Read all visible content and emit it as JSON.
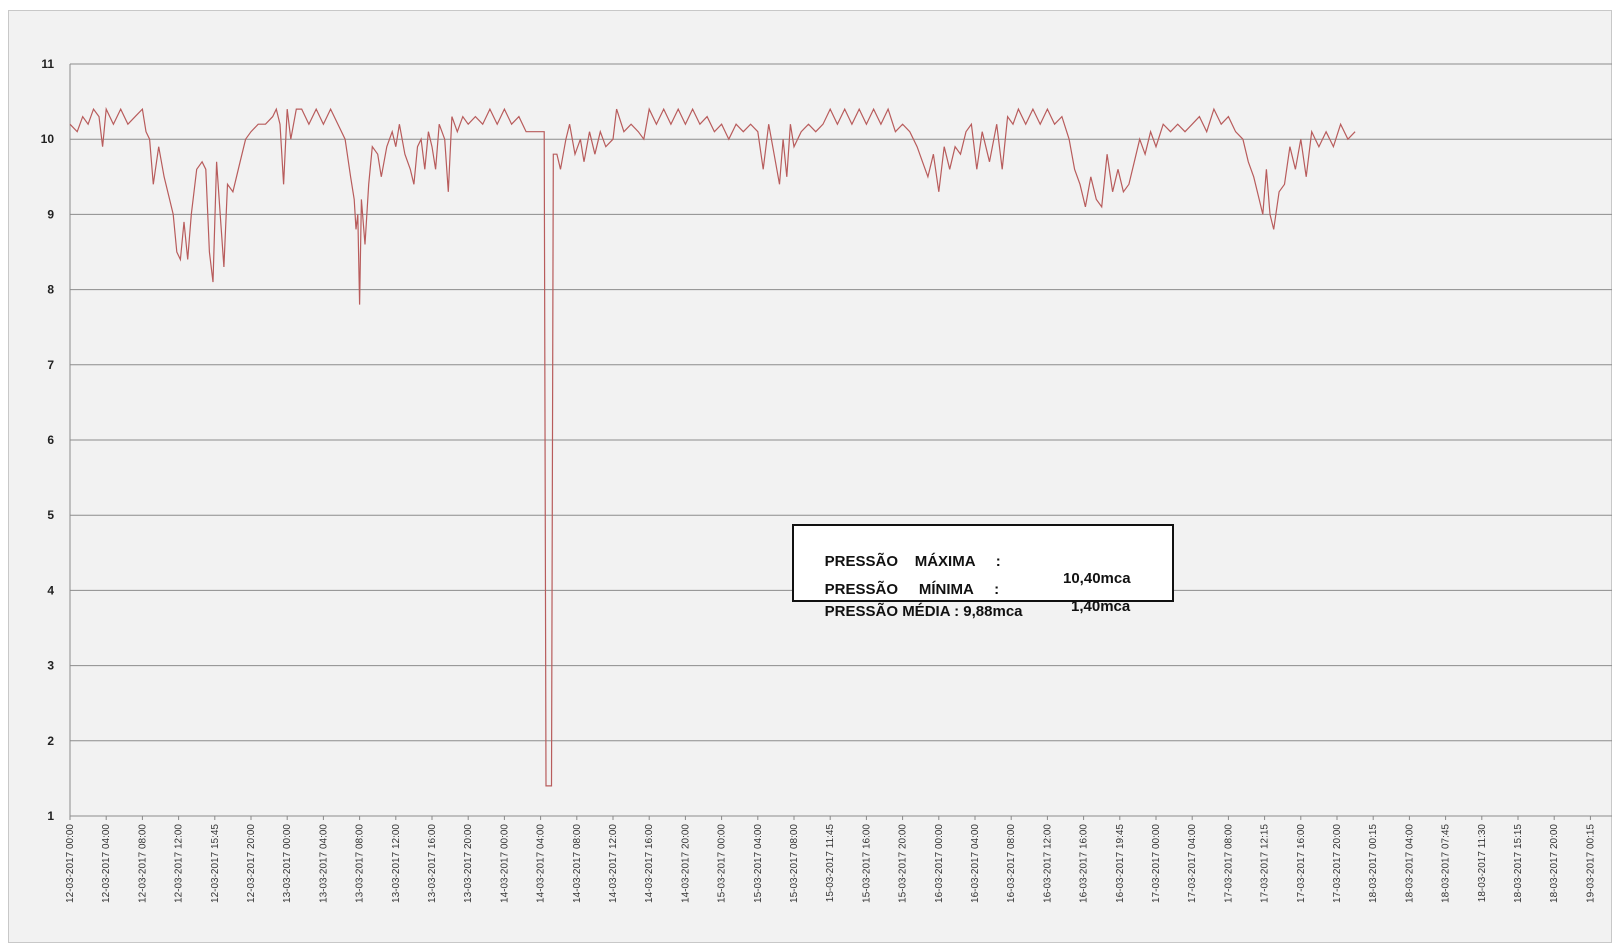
{
  "chart_data": {
    "type": "line",
    "title": "",
    "xlabel": "",
    "ylabel": "",
    "ylim": [
      1,
      11
    ],
    "yticks": [
      "1",
      "2",
      "3",
      "4",
      "5",
      "6",
      "7",
      "8",
      "9",
      "10",
      "11"
    ],
    "grid": true,
    "xtick_labels": [
      "12-03-2017 00:00",
      "12-03-2017 04:00",
      "12-03-2017 08:00",
      "12-03-2017 12:00",
      "12-03-2017 15:45",
      "12-03-2017 20:00",
      "13-03-2017 00:00",
      "13-03-2017 04:00",
      "13-03-2017 08:00",
      "13-03-2017 12:00",
      "13-03-2017 16:00",
      "13-03-2017 20:00",
      "14-03-2017 00:00",
      "14-03-2017 04:00",
      "14-03-2017 08:00",
      "14-03-2017 12:00",
      "14-03-2017 16:00",
      "14-03-2017 20:00",
      "15-03-2017 00:00",
      "15-03-2017 04:00",
      "15-03-2017 08:00",
      "15-03-2017 11:45",
      "15-03-2017 16:00",
      "15-03-2017 20:00",
      "16-03-2017 00:00",
      "16-03-2017 04:00",
      "16-03-2017 08:00",
      "16-03-2017 12:00",
      "16-03-2017 16:00",
      "16-03-2017 19:45",
      "17-03-2017 00:00",
      "17-03-2017 04:00",
      "17-03-2017 08:00",
      "17-03-2017 12:15",
      "17-03-2017 16:00",
      "17-03-2017 20:00",
      "18-03-2017 00:15",
      "18-03-2017 04:00",
      "18-03-2017 07:45",
      "18-03-2017 11:30",
      "18-03-2017 15:15",
      "18-03-2017 20:00",
      "19-03-2017 00:15"
    ],
    "series": [
      {
        "color": "#b85c5c",
        "points": [
          [
            0.0,
            10.2
          ],
          [
            0.2,
            10.1
          ],
          [
            0.35,
            10.3
          ],
          [
            0.5,
            10.2
          ],
          [
            0.65,
            10.4
          ],
          [
            0.8,
            10.3
          ],
          [
            0.9,
            9.9
          ],
          [
            1.0,
            10.4
          ],
          [
            1.2,
            10.2
          ],
          [
            1.4,
            10.4
          ],
          [
            1.6,
            10.2
          ],
          [
            1.8,
            10.3
          ],
          [
            2.0,
            10.4
          ],
          [
            2.1,
            10.1
          ],
          [
            2.2,
            10.0
          ],
          [
            2.3,
            9.4
          ],
          [
            2.45,
            9.9
          ],
          [
            2.6,
            9.5
          ],
          [
            2.75,
            9.2
          ],
          [
            2.85,
            9.0
          ],
          [
            2.95,
            8.5
          ],
          [
            3.05,
            8.4
          ],
          [
            3.15,
            8.9
          ],
          [
            3.25,
            8.4
          ],
          [
            3.35,
            9.0
          ],
          [
            3.5,
            9.6
          ],
          [
            3.65,
            9.7
          ],
          [
            3.75,
            9.6
          ],
          [
            3.85,
            8.5
          ],
          [
            3.95,
            8.1
          ],
          [
            4.05,
            9.7
          ],
          [
            4.15,
            9.0
          ],
          [
            4.25,
            8.3
          ],
          [
            4.35,
            9.4
          ],
          [
            4.5,
            9.3
          ],
          [
            4.7,
            9.7
          ],
          [
            4.85,
            10.0
          ],
          [
            5.0,
            10.1
          ],
          [
            5.2,
            10.2
          ],
          [
            5.4,
            10.2
          ],
          [
            5.6,
            10.3
          ],
          [
            5.7,
            10.4
          ],
          [
            5.8,
            10.2
          ],
          [
            5.9,
            9.4
          ],
          [
            6.0,
            10.4
          ],
          [
            6.1,
            10.0
          ],
          [
            6.25,
            10.4
          ],
          [
            6.4,
            10.4
          ],
          [
            6.6,
            10.2
          ],
          [
            6.8,
            10.4
          ],
          [
            7.0,
            10.2
          ],
          [
            7.2,
            10.4
          ],
          [
            7.4,
            10.2
          ],
          [
            7.6,
            10.0
          ],
          [
            7.75,
            9.5
          ],
          [
            7.85,
            9.2
          ],
          [
            7.9,
            8.8
          ],
          [
            7.95,
            9.0
          ],
          [
            8.0,
            7.8
          ],
          [
            8.05,
            9.2
          ],
          [
            8.15,
            8.6
          ],
          [
            8.25,
            9.4
          ],
          [
            8.35,
            9.9
          ],
          [
            8.5,
            9.8
          ],
          [
            8.6,
            9.5
          ],
          [
            8.75,
            9.9
          ],
          [
            8.9,
            10.1
          ],
          [
            9.0,
            9.9
          ],
          [
            9.1,
            10.2
          ],
          [
            9.25,
            9.8
          ],
          [
            9.4,
            9.6
          ],
          [
            9.5,
            9.4
          ],
          [
            9.6,
            9.9
          ],
          [
            9.7,
            10.0
          ],
          [
            9.8,
            9.6
          ],
          [
            9.9,
            10.1
          ],
          [
            10.0,
            9.9
          ],
          [
            10.1,
            9.6
          ],
          [
            10.2,
            10.2
          ],
          [
            10.35,
            10.0
          ],
          [
            10.45,
            9.3
          ],
          [
            10.55,
            10.3
          ],
          [
            10.7,
            10.1
          ],
          [
            10.85,
            10.3
          ],
          [
            11.0,
            10.2
          ],
          [
            11.2,
            10.3
          ],
          [
            11.4,
            10.2
          ],
          [
            11.6,
            10.4
          ],
          [
            11.8,
            10.2
          ],
          [
            12.0,
            10.4
          ],
          [
            12.2,
            10.2
          ],
          [
            12.4,
            10.3
          ],
          [
            12.6,
            10.1
          ],
          [
            12.8,
            10.1
          ],
          [
            13.0,
            10.1
          ],
          [
            13.1,
            10.1
          ],
          [
            13.15,
            1.4
          ],
          [
            13.3,
            1.4
          ],
          [
            13.35,
            9.8
          ],
          [
            13.45,
            9.8
          ],
          [
            13.55,
            9.6
          ],
          [
            13.7,
            10.0
          ],
          [
            13.8,
            10.2
          ],
          [
            13.95,
            9.8
          ],
          [
            14.1,
            10.0
          ],
          [
            14.2,
            9.7
          ],
          [
            14.35,
            10.1
          ],
          [
            14.5,
            9.8
          ],
          [
            14.65,
            10.1
          ],
          [
            14.8,
            9.9
          ],
          [
            15.0,
            10.0
          ],
          [
            15.1,
            10.4
          ],
          [
            15.3,
            10.1
          ],
          [
            15.5,
            10.2
          ],
          [
            15.7,
            10.1
          ],
          [
            15.85,
            10.0
          ],
          [
            16.0,
            10.4
          ],
          [
            16.2,
            10.2
          ],
          [
            16.4,
            10.4
          ],
          [
            16.6,
            10.2
          ],
          [
            16.8,
            10.4
          ],
          [
            17.0,
            10.2
          ],
          [
            17.2,
            10.4
          ],
          [
            17.4,
            10.2
          ],
          [
            17.6,
            10.3
          ],
          [
            17.8,
            10.1
          ],
          [
            18.0,
            10.2
          ],
          [
            18.2,
            10.0
          ],
          [
            18.4,
            10.2
          ],
          [
            18.6,
            10.1
          ],
          [
            18.8,
            10.2
          ],
          [
            19.0,
            10.1
          ],
          [
            19.15,
            9.6
          ],
          [
            19.3,
            10.2
          ],
          [
            19.45,
            9.8
          ],
          [
            19.6,
            9.4
          ],
          [
            19.7,
            10.0
          ],
          [
            19.8,
            9.5
          ],
          [
            19.9,
            10.2
          ],
          [
            20.0,
            9.9
          ],
          [
            20.2,
            10.1
          ],
          [
            20.4,
            10.2
          ],
          [
            20.6,
            10.1
          ],
          [
            20.8,
            10.2
          ],
          [
            21.0,
            10.4
          ],
          [
            21.2,
            10.2
          ],
          [
            21.4,
            10.4
          ],
          [
            21.6,
            10.2
          ],
          [
            21.8,
            10.4
          ],
          [
            22.0,
            10.2
          ],
          [
            22.2,
            10.4
          ],
          [
            22.4,
            10.2
          ],
          [
            22.6,
            10.4
          ],
          [
            22.8,
            10.1
          ],
          [
            23.0,
            10.2
          ],
          [
            23.2,
            10.1
          ],
          [
            23.4,
            9.9
          ],
          [
            23.55,
            9.7
          ],
          [
            23.7,
            9.5
          ],
          [
            23.85,
            9.8
          ],
          [
            24.0,
            9.3
          ],
          [
            24.15,
            9.9
          ],
          [
            24.3,
            9.6
          ],
          [
            24.45,
            9.9
          ],
          [
            24.6,
            9.8
          ],
          [
            24.75,
            10.1
          ],
          [
            24.9,
            10.2
          ],
          [
            25.05,
            9.6
          ],
          [
            25.2,
            10.1
          ],
          [
            25.4,
            9.7
          ],
          [
            25.6,
            10.2
          ],
          [
            25.75,
            9.6
          ],
          [
            25.9,
            10.3
          ],
          [
            26.05,
            10.2
          ],
          [
            26.2,
            10.4
          ],
          [
            26.4,
            10.2
          ],
          [
            26.6,
            10.4
          ],
          [
            26.8,
            10.2
          ],
          [
            27.0,
            10.4
          ],
          [
            27.2,
            10.2
          ],
          [
            27.4,
            10.3
          ],
          [
            27.6,
            10.0
          ],
          [
            27.75,
            9.6
          ],
          [
            27.9,
            9.4
          ],
          [
            28.05,
            9.1
          ],
          [
            28.2,
            9.5
          ],
          [
            28.35,
            9.2
          ],
          [
            28.5,
            9.1
          ],
          [
            28.65,
            9.8
          ],
          [
            28.8,
            9.3
          ],
          [
            28.95,
            9.6
          ],
          [
            29.1,
            9.3
          ],
          [
            29.25,
            9.4
          ],
          [
            29.4,
            9.7
          ],
          [
            29.55,
            10.0
          ],
          [
            29.7,
            9.8
          ],
          [
            29.85,
            10.1
          ],
          [
            30.0,
            9.9
          ],
          [
            30.2,
            10.2
          ],
          [
            30.4,
            10.1
          ],
          [
            30.6,
            10.2
          ],
          [
            30.8,
            10.1
          ],
          [
            31.0,
            10.2
          ],
          [
            31.2,
            10.3
          ],
          [
            31.4,
            10.1
          ],
          [
            31.6,
            10.4
          ],
          [
            31.8,
            10.2
          ],
          [
            32.0,
            10.3
          ],
          [
            32.2,
            10.1
          ],
          [
            32.4,
            10.0
          ],
          [
            32.55,
            9.7
          ],
          [
            32.7,
            9.5
          ],
          [
            32.85,
            9.2
          ],
          [
            32.95,
            9.0
          ],
          [
            33.05,
            9.6
          ],
          [
            33.15,
            9.0
          ],
          [
            33.25,
            8.8
          ],
          [
            33.4,
            9.3
          ],
          [
            33.55,
            9.4
          ],
          [
            33.7,
            9.9
          ],
          [
            33.85,
            9.6
          ],
          [
            34.0,
            10.0
          ],
          [
            34.15,
            9.5
          ],
          [
            34.3,
            10.1
          ],
          [
            34.5,
            9.9
          ],
          [
            34.7,
            10.1
          ],
          [
            34.9,
            9.9
          ],
          [
            35.1,
            10.2
          ],
          [
            35.3,
            10.0
          ],
          [
            35.5,
            10.1
          ]
        ]
      }
    ],
    "annotations": {
      "max_label": "PRESSÃO    MÁXIMA     :",
      "max_value": "10,40mca",
      "min_label": "PRESSÃO     MÍNIMA     :",
      "min_value": "1,40mca",
      "avg_label": "PRESSÃO MÉDIA : 9,88mca"
    }
  }
}
